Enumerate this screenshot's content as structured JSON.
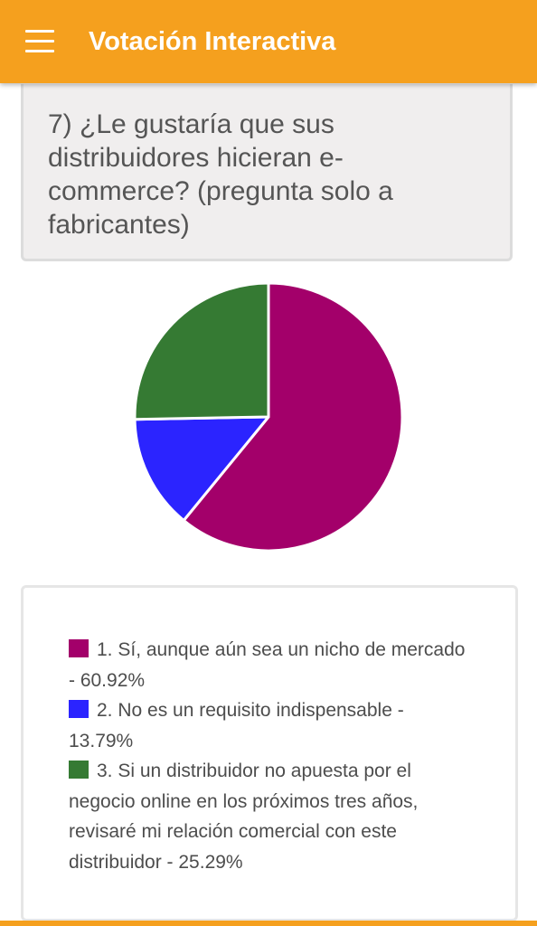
{
  "app": {
    "title": "Votación Interactiva",
    "accent_color": "#f5a01e",
    "menu_icon": "hamburger-menu-icon"
  },
  "question": {
    "text": "7) ¿Le gustaría que sus distribuidores hicieran e-commerce? (pregunta solo a fabricantes)"
  },
  "chart_data": {
    "type": "pie",
    "title": "",
    "start_angle_deg": 0,
    "direction": "clockwise",
    "slices": [
      {
        "label": "1. Sí, aunque aún sea un nicho de mercado - 60.92%",
        "value": 60.92,
        "color": "#a3006a"
      },
      {
        "label": "2. No es un requisito indispensable - 13.79%",
        "value": 13.79,
        "color": "#2b24ff"
      },
      {
        "label": "3. Si un distribuidor no apuesta por el negocio online en los próximos tres años, revisaré mi relación comercial con este distribuidor - 25.29%",
        "value": 25.29,
        "color": "#357a33"
      }
    ]
  }
}
